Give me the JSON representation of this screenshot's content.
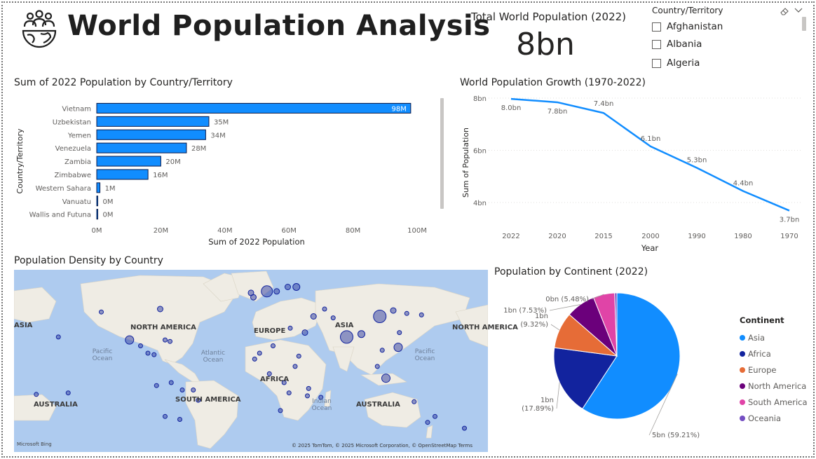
{
  "header": {
    "title": "World Population Analysis",
    "logo_icon": "globe-people-icon"
  },
  "kpi": {
    "label": "Total World Population (2022)",
    "value": "8bn"
  },
  "slicer": {
    "title": "Country/Territory",
    "items": [
      "Afghanistan",
      "Albania",
      "Algeria"
    ],
    "eraser_icon": "eraser-icon",
    "chevron_icon": "chevron-down-icon"
  },
  "bar_chart": {
    "title": "Sum of 2022 Population by Country/Territory"
  },
  "line_chart": {
    "title": "World Population Growth (1970-2022)"
  },
  "map": {
    "title": "Population Density by Country",
    "continent_labels": [
      "NORTH AMERICA",
      "EUROPE",
      "ASIA",
      "AFRICA",
      "SOUTH AMERICA",
      "AUSTRALIA",
      "AUSTRALIA",
      "ASIA",
      "NORTH AMERICA"
    ],
    "ocean_labels": [
      "Pacific\nOcean",
      "Atlantic\nOcean",
      "Indian\nOcean",
      "Pacific\nOcean"
    ],
    "brand": "Microsoft Bing",
    "attribution": "© 2025 TomTom, © 2025 Microsoft Corporation, © OpenStreetMap  Terms"
  },
  "pie": {
    "title": "Population by Continent (2022)",
    "legend_title": "Continent"
  },
  "chart_data": [
    {
      "type": "bar",
      "orientation": "horizontal",
      "title": "Sum of 2022 Population by Country/Territory",
      "xlabel": "Sum of 2022 Population",
      "ylabel": "Country/Territory",
      "categories": [
        "Vietnam",
        "Uzbekistan",
        "Yemen",
        "Venezuela",
        "Zambia",
        "Zimbabwe",
        "Western Sahara",
        "Vanuatu",
        "Wallis and Futuna"
      ],
      "values": [
        98,
        35,
        34,
        28,
        20,
        16,
        1,
        0.3,
        0.01
      ],
      "data_labels": [
        "98M",
        "35M",
        "34M",
        "28M",
        "20M",
        "16M",
        "1M",
        "0M",
        "0M"
      ],
      "xticks": [
        "0M",
        "20M",
        "40M",
        "60M",
        "80M",
        "100M"
      ],
      "xlim": [
        0,
        100
      ],
      "color": "#118DFF"
    },
    {
      "type": "line",
      "title": "World Population Growth (1970-2022)",
      "xlabel": "Year",
      "ylabel": "Sum of Population",
      "x": [
        "2022",
        "2020",
        "2015",
        "2000",
        "1990",
        "1980",
        "1970"
      ],
      "values": [
        7.97,
        7.84,
        7.43,
        6.15,
        5.33,
        4.44,
        3.69
      ],
      "data_labels": [
        "8.0bn",
        "7.8bn",
        "7.4bn",
        "6.1bn",
        "5.3bn",
        "4.4bn",
        "3.7bn"
      ],
      "yticks": [
        "8bn",
        "6bn",
        "4bn"
      ],
      "ylim": [
        3.7,
        8.0
      ],
      "color": "#118DFF"
    },
    {
      "type": "pie",
      "title": "Population by Continent (2022)",
      "legend_title": "Continent",
      "categories": [
        "Asia",
        "Africa",
        "Europe",
        "North America",
        "South America",
        "Oceania"
      ],
      "values": [
        59.21,
        17.89,
        9.32,
        7.53,
        5.48,
        0.57
      ],
      "data_labels": [
        "5bn (59.21%)",
        "1bn\n(17.89%)",
        "1bn\n(9.32%)",
        "1bn (7.53%)",
        "0bn (5.48%)",
        ""
      ],
      "colors": [
        "#118DFF",
        "#12239E",
        "#E66C37",
        "#6B007B",
        "#E044A7",
        "#744EC2"
      ]
    },
    {
      "type": "scatter",
      "title": "Population Density by Country",
      "note": "bubble map",
      "x": [
        -122,
        -74,
        -99,
        -90,
        -84,
        -79,
        -66,
        -70,
        -56,
        -47,
        -43,
        -58,
        -77,
        -70,
        -65,
        0,
        2,
        13,
        21,
        30,
        37,
        44,
        51,
        60,
        67,
        78,
        90,
        105,
        116,
        121,
        127,
        139,
        103,
        107,
        120,
        110,
        3,
        7,
        18,
        27,
        36,
        39,
        32,
        46,
        15,
        24,
        31,
        47,
        57,
        150,
        144,
        133,
        174,
        -157,
        -175,
        -149
      ],
      "y": [
        38,
        40,
        19,
        15,
        10,
        9,
        18,
        19,
        -15,
        -15,
        -22,
        -35,
        -12,
        -33,
        -10,
        51,
        48,
        52,
        52,
        55,
        55,
        24,
        35,
        40,
        34,
        21,
        23,
        35,
        39,
        24,
        37,
        36,
        1,
        12,
        14,
        -7,
        6,
        10,
        15,
        -10,
        1,
        8,
        27,
        -19,
        -4,
        -29,
        -17,
        -14,
        -20,
        -33,
        -37,
        -23,
        -41,
        21,
        -18,
        -17
      ],
      "size": [
        3,
        4,
        6,
        3,
        3,
        3,
        3,
        3,
        3,
        3,
        3,
        3,
        3,
        3,
        3,
        4,
        4,
        8,
        4,
        4,
        5,
        4,
        4,
        3,
        3,
        9,
        5,
        9,
        4,
        3,
        3,
        3,
        3,
        3,
        6,
        6,
        3,
        3,
        3,
        3,
        3,
        3,
        3,
        3,
        3,
        3,
        3,
        3,
        3,
        3,
        3,
        3,
        3,
        3,
        3,
        3
      ]
    }
  ]
}
